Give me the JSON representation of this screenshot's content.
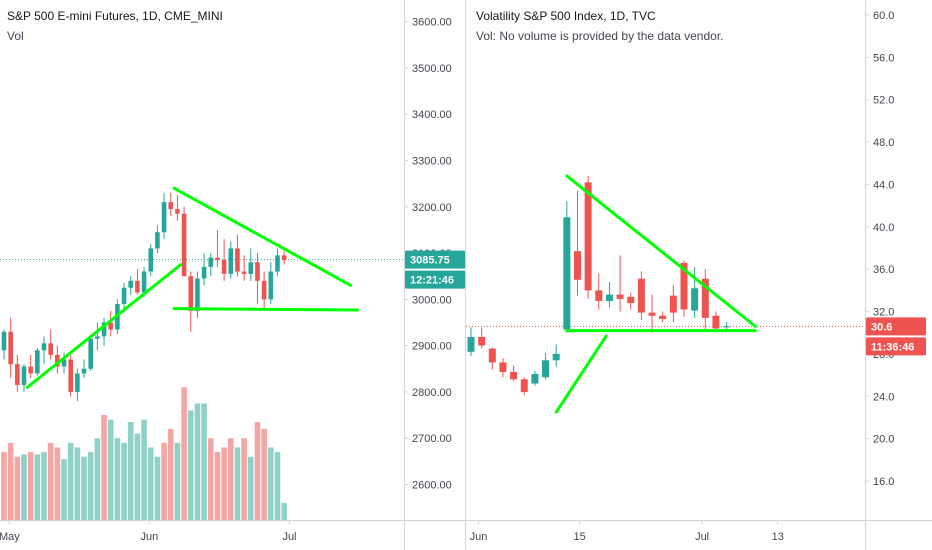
{
  "colors": {
    "up": "#26a69a",
    "down": "#ef5350",
    "up_vol": "#8fd1c7",
    "down_vol": "#f4a6a4",
    "trend": "#00ff00",
    "bg": "#ffffff",
    "price_line_left": "#26a69a",
    "price_line_right": "#ef5350"
  },
  "chart_data": [
    {
      "type": "candlestick",
      "title": "S&P 500 E-mini Futures, 1D, CME_MINI",
      "subtitle": "Vol",
      "ylim": [
        2550,
        3650
      ],
      "y_ticks": [
        2600,
        2700,
        2800,
        2900,
        3000,
        3100,
        3200,
        3300,
        3400,
        3500,
        3600
      ],
      "y_tick_labels": [
        "2600.00",
        "2700.00",
        "2800.00",
        "2900.00",
        "3000.00",
        "3100.00",
        "3200.00",
        "3300.00",
        "3400.00",
        "3500.00",
        "3600.00"
      ],
      "x_labels": [
        {
          "label": "May",
          "bar": 0.8
        },
        {
          "label": "Jun",
          "bar": 21.8
        },
        {
          "label": "Jul",
          "bar": 42.8
        }
      ],
      "last_price": 3085.75,
      "last_price_label": "3085.75",
      "countdown": "12:21:46",
      "candles": [
        [
          2890,
          2935,
          2870,
          2930
        ],
        [
          2930,
          2960,
          2830,
          2860
        ],
        [
          2860,
          2880,
          2800,
          2815
        ],
        [
          2815,
          2860,
          2800,
          2855
        ],
        [
          2855,
          2880,
          2830,
          2840
        ],
        [
          2840,
          2895,
          2835,
          2890
        ],
        [
          2890,
          2920,
          2860,
          2905
        ],
        [
          2905,
          2935,
          2870,
          2880
        ],
        [
          2880,
          2900,
          2840,
          2855
        ],
        [
          2855,
          2885,
          2840,
          2870
        ],
        [
          2870,
          2880,
          2790,
          2800
        ],
        [
          2800,
          2850,
          2780,
          2840
        ],
        [
          2840,
          2870,
          2830,
          2850
        ],
        [
          2850,
          2920,
          2845,
          2915
        ],
        [
          2915,
          2950,
          2890,
          2920
        ],
        [
          2920,
          2960,
          2900,
          2950
        ],
        [
          2950,
          2975,
          2920,
          2935
        ],
        [
          2935,
          3000,
          2925,
          2990
        ],
        [
          2990,
          3035,
          2975,
          3025
        ],
        [
          3025,
          3050,
          3010,
          3040
        ],
        [
          3040,
          3065,
          3010,
          3015
        ],
        [
          3015,
          3070,
          3005,
          3060
        ],
        [
          3060,
          3120,
          3050,
          3110
        ],
        [
          3110,
          3160,
          3100,
          3145
        ],
        [
          3145,
          3230,
          3130,
          3210
        ],
        [
          3210,
          3230,
          3180,
          3195
        ],
        [
          3195,
          3225,
          3170,
          3185
        ],
        [
          3185,
          3200,
          3050,
          3050
        ],
        [
          3050,
          3060,
          2930,
          2975
        ],
        [
          2975,
          3060,
          2960,
          3045
        ],
        [
          3045,
          3100,
          3030,
          3070
        ],
        [
          3070,
          3100,
          3050,
          3090
        ],
        [
          3090,
          3150,
          3070,
          3085
        ],
        [
          3085,
          3130,
          3040,
          3055
        ],
        [
          3055,
          3125,
          3045,
          3110
        ],
        [
          3110,
          3140,
          3050,
          3060
        ],
        [
          3060,
          3095,
          3040,
          3055
        ],
        [
          3055,
          3110,
          3040,
          3080
        ],
        [
          3080,
          3100,
          2990,
          3040
        ],
        [
          3040,
          3060,
          2975,
          3000
        ],
        [
          3000,
          3080,
          2990,
          3060
        ],
        [
          3060,
          3110,
          3050,
          3095
        ],
        [
          3095,
          3105,
          3075,
          3085
        ]
      ],
      "volume": [
        [
          2670,
          "down"
        ],
        [
          2690,
          "down"
        ],
        [
          2660,
          "down"
        ],
        [
          2665,
          "up"
        ],
        [
          2670,
          "down"
        ],
        [
          2665,
          "up"
        ],
        [
          2670,
          "up"
        ],
        [
          2690,
          "down"
        ],
        [
          2680,
          "down"
        ],
        [
          2655,
          "up"
        ],
        [
          2690,
          "up"
        ],
        [
          2680,
          "up"
        ],
        [
          2660,
          "up"
        ],
        [
          2670,
          "up"
        ],
        [
          2700,
          "up"
        ],
        [
          2750,
          "down"
        ],
        [
          2740,
          "up"
        ],
        [
          2700,
          "up"
        ],
        [
          2690,
          "up"
        ],
        [
          2735,
          "up"
        ],
        [
          2710,
          "up"
        ],
        [
          2740,
          "up"
        ],
        [
          2680,
          "up"
        ],
        [
          2660,
          "up"
        ],
        [
          2690,
          "down"
        ],
        [
          2720,
          "down"
        ],
        [
          2690,
          "up"
        ],
        [
          2810,
          "down"
        ],
        [
          2760,
          "up"
        ],
        [
          2775,
          "up"
        ],
        [
          2775,
          "up"
        ],
        [
          2700,
          "down"
        ],
        [
          2670,
          "down"
        ],
        [
          2680,
          "down"
        ],
        [
          2700,
          "down"
        ],
        [
          2680,
          "up"
        ],
        [
          2700,
          "down"
        ],
        [
          2660,
          "up"
        ],
        [
          2735,
          "down"
        ],
        [
          2720,
          "down"
        ],
        [
          2680,
          "up"
        ],
        [
          2670,
          "up"
        ],
        [
          2560,
          "up"
        ]
      ],
      "trendlines": [
        {
          "from": [
            3.5,
            2810
          ],
          "to": [
            26.5,
            3075
          ]
        },
        {
          "from": [
            25.5,
            3240
          ],
          "to": [
            52,
            3030
          ]
        },
        {
          "from": [
            25.5,
            2980
          ],
          "to": [
            53,
            2977
          ]
        }
      ]
    },
    {
      "type": "candlestick",
      "title": "Volatility S&P 500 Index, 1D, TVC",
      "subtitle": "Vol: No volume is provided by the data vendor.",
      "ylim": [
        12.2,
        61.6
      ],
      "y_ticks": [
        16,
        20,
        24,
        28,
        32,
        36,
        40,
        44,
        48,
        52,
        56,
        60
      ],
      "y_tick_labels": [
        "16.0",
        "20.0",
        "24.0",
        "28.0",
        "32.0",
        "36.0",
        "40.0",
        "44.0",
        "48.0",
        "52.0",
        "56.0",
        "60.0"
      ],
      "x_labels": [
        {
          "label": "Jun",
          "bar": 0.7
        },
        {
          "label": "15",
          "bar": 10.2
        },
        {
          "label": "Jul",
          "bar": 21.7
        },
        {
          "label": "13",
          "bar": 28.8
        }
      ],
      "last_price": 30.6,
      "last_price_label": "30.6",
      "countdown": "11:36:46",
      "candles": [
        [
          28.2,
          30.5,
          27.8,
          29.6
        ],
        [
          29.6,
          30.5,
          28.5,
          28.8
        ],
        [
          28.5,
          28.6,
          26.5,
          27.2
        ],
        [
          27.2,
          27.6,
          25.8,
          26.3
        ],
        [
          26.3,
          26.9,
          25.4,
          25.6
        ],
        [
          25.6,
          25.8,
          24.1,
          24.4
        ],
        [
          25.2,
          26.4,
          25.0,
          26.1
        ],
        [
          25.8,
          28.1,
          25.6,
          27.4
        ],
        [
          27.4,
          28.9,
          26.8,
          28.0
        ],
        [
          30.3,
          42.4,
          30.0,
          40.9
        ],
        [
          37.7,
          43.4,
          33.5,
          35.0
        ],
        [
          44.2,
          44.8,
          33.2,
          34.0
        ],
        [
          34.0,
          35.6,
          32.2,
          33.0
        ],
        [
          33.0,
          34.8,
          32.4,
          33.6
        ],
        [
          33.6,
          37.3,
          32.0,
          33.2
        ],
        [
          33.4,
          33.8,
          32.2,
          32.8
        ],
        [
          35.1,
          35.8,
          31.2,
          31.9
        ],
        [
          31.9,
          33.6,
          30.0,
          31.6
        ],
        [
          31.6,
          32.0,
          31.0,
          31.3
        ],
        [
          33.5,
          34.5,
          31.0,
          31.9
        ],
        [
          36.6,
          36.8,
          31.5,
          32.2
        ],
        [
          32.1,
          36.2,
          31.4,
          34.2
        ],
        [
          35.1,
          36.0,
          30.1,
          31.4
        ],
        [
          31.6,
          32.0,
          30.0,
          30.4
        ],
        [
          30.6,
          31.0,
          30.3,
          30.6
        ]
      ],
      "trendlines": [
        {
          "from": [
            8.0,
            22.5
          ],
          "to": [
            12.7,
            29.7
          ]
        },
        {
          "from": [
            9.0,
            44.8
          ],
          "to": [
            26.7,
            30.6
          ]
        },
        {
          "from": [
            9.0,
            30.2
          ],
          "to": [
            26.7,
            30.2
          ]
        }
      ]
    }
  ]
}
